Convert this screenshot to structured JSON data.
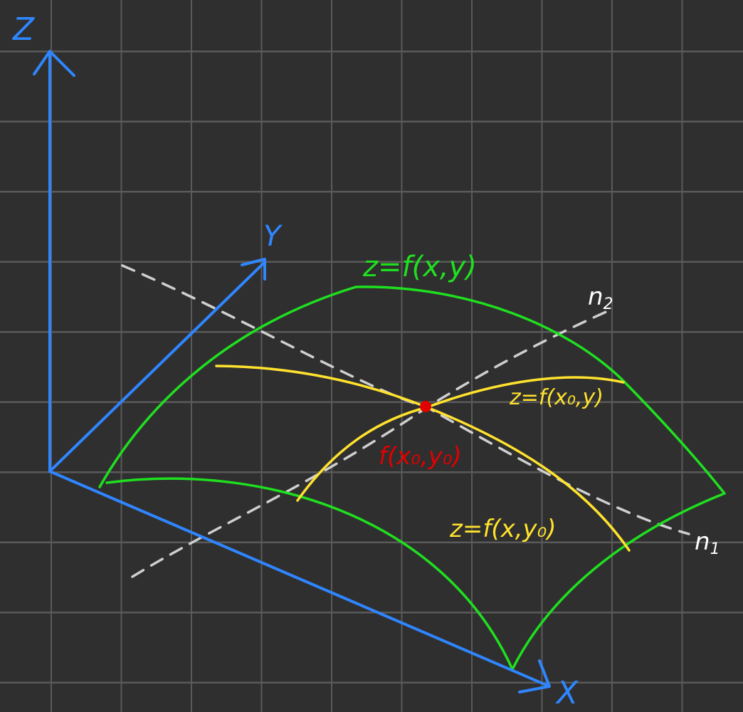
{
  "axes": {
    "z_label": "Z",
    "y_label": "Y",
    "x_label": "X"
  },
  "planes": {
    "p1_label": "n",
    "p1_sub": "1",
    "p2_label": "n",
    "p2_sub": "2"
  },
  "surface": {
    "label": "z=f(x,y)"
  },
  "curves": {
    "curve_x0_label": "z=f(x₀,y)",
    "curve_y0_label": "z=f(x,y₀)"
  },
  "point": {
    "label": "f(x₀,y₀)"
  },
  "colors": {
    "background": "#2f2f2f",
    "grid": "#5a5a5a",
    "axis": "#2f86ff",
    "surface": "#1fe01f",
    "curve": "#ffe22e",
    "point": "#e00000",
    "dashed": "#cfcfcf",
    "plane_label": "#ffffff"
  }
}
